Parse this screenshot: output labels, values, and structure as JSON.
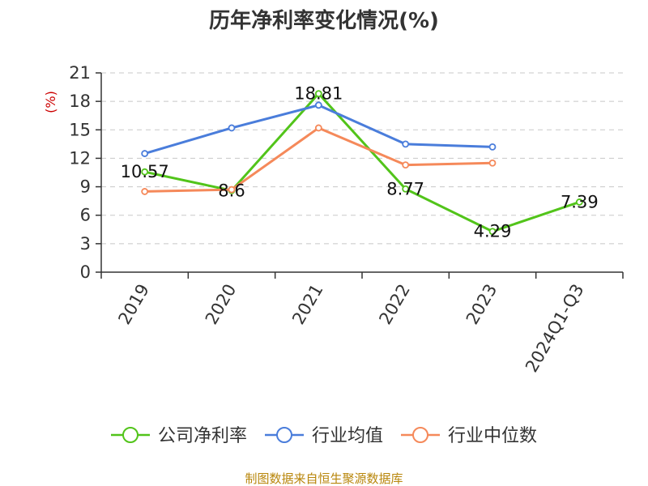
{
  "chart_data": {
    "type": "line",
    "title": "历年净利率变化情况(%)",
    "ylabel": "(%)",
    "xlabel": "",
    "categories": [
      "2019",
      "2020",
      "2021",
      "2022",
      "2023",
      "2024Q1-Q3"
    ],
    "ylim": [
      0,
      21
    ],
    "yticks": [
      0,
      3,
      6,
      9,
      12,
      15,
      18,
      21
    ],
    "grid": true,
    "legend_position": "bottom",
    "series": [
      {
        "name": "公司净利率",
        "color": "#52c41a",
        "values": [
          10.57,
          8.6,
          18.81,
          8.77,
          4.29,
          7.39
        ],
        "labels": [
          "10.57",
          "8.6",
          "18.81",
          "8.77",
          "4.29",
          "7.39"
        ]
      },
      {
        "name": "行业均值",
        "color": "#4a7ddb",
        "values": [
          12.5,
          15.2,
          17.6,
          13.5,
          13.2,
          null
        ]
      },
      {
        "name": "行业中位数",
        "color": "#f5895a",
        "values": [
          8.5,
          8.7,
          15.2,
          11.3,
          11.5,
          null
        ]
      }
    ]
  },
  "source": "制图数据来自恒生聚源数据库"
}
